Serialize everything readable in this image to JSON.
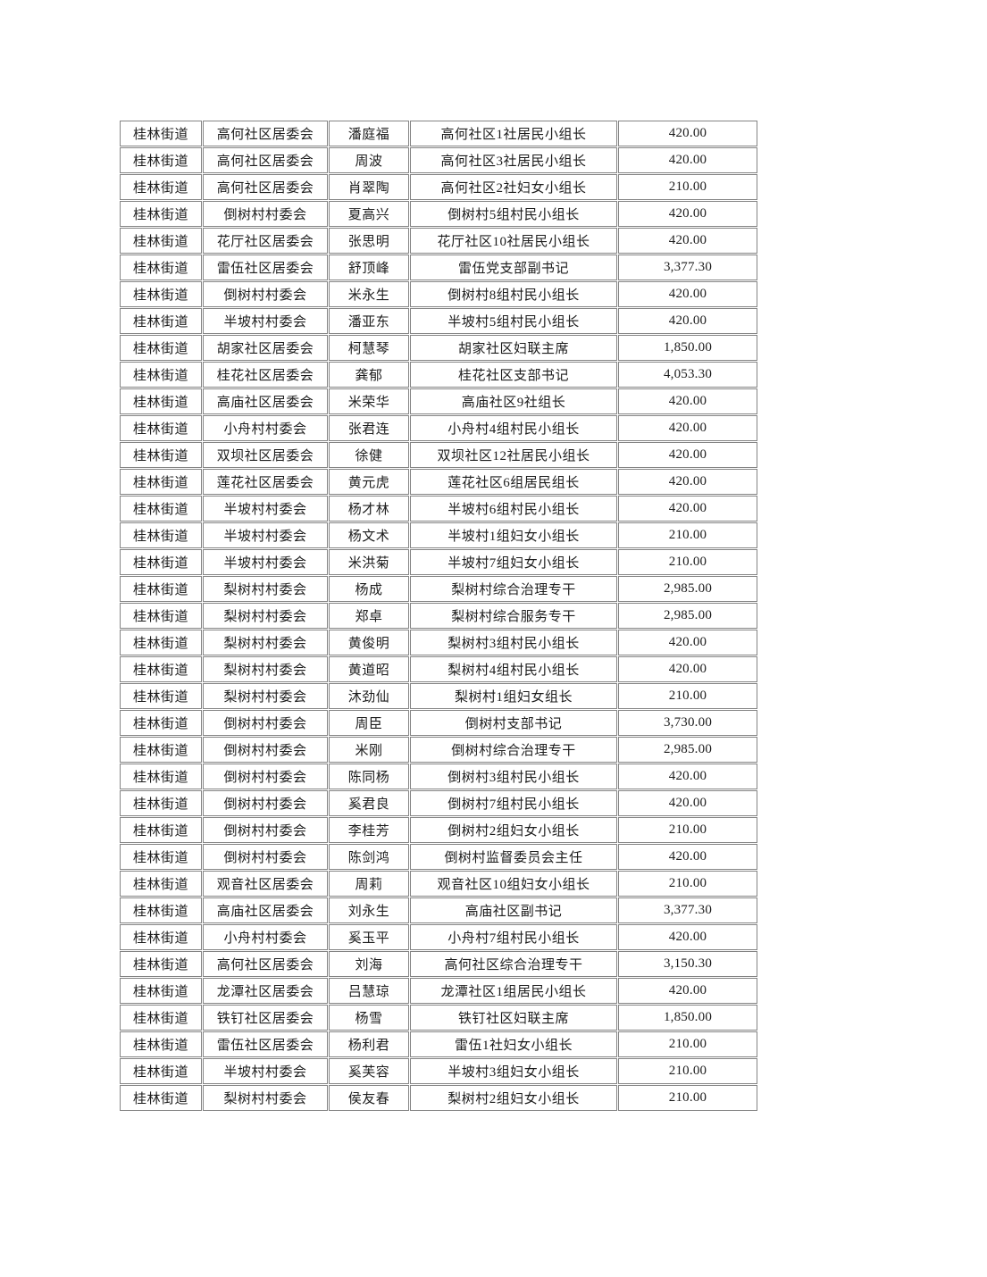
{
  "page": {
    "background_color": "#ffffff",
    "text_color": "#1c1c1c",
    "table_border_color": "#848484"
  },
  "table": {
    "column_keys": [
      "street",
      "organization",
      "person-name",
      "position",
      "amount"
    ],
    "rows": [
      [
        "桂林街道",
        "高何社区居委会",
        "潘庭福",
        "高何社区1社居民小组长",
        "420.00"
      ],
      [
        "桂林街道",
        "高何社区居委会",
        "周波",
        "高何社区3社居民小组长",
        "420.00"
      ],
      [
        "桂林街道",
        "高何社区居委会",
        "肖翠陶",
        "高何社区2社妇女小组长",
        "210.00"
      ],
      [
        "桂林街道",
        "倒树村村委会",
        "夏高兴",
        "倒树村5组村民小组长",
        "420.00"
      ],
      [
        "桂林街道",
        "花厅社区居委会",
        "张思明",
        "花厅社区10社居民小组长",
        "420.00"
      ],
      [
        "桂林街道",
        "雷伍社区居委会",
        "舒顶峰",
        "雷伍党支部副书记",
        "3,377.30"
      ],
      [
        "桂林街道",
        "倒树村村委会",
        "米永生",
        "倒树村8组村民小组长",
        "420.00"
      ],
      [
        "桂林街道",
        "半坡村村委会",
        "潘亚东",
        "半坡村5组村民小组长",
        "420.00"
      ],
      [
        "桂林街道",
        "胡家社区居委会",
        "柯慧琴",
        "胡家社区妇联主席",
        "1,850.00"
      ],
      [
        "桂林街道",
        "桂花社区居委会",
        "龚郁",
        "桂花社区支部书记",
        "4,053.30"
      ],
      [
        "桂林街道",
        "高庙社区居委会",
        "米荣华",
        "高庙社区9社组长",
        "420.00"
      ],
      [
        "桂林街道",
        "小舟村村委会",
        "张君连",
        "小舟村4组村民小组长",
        "420.00"
      ],
      [
        "桂林街道",
        "双坝社区居委会",
        "徐健",
        "双坝社区12社居民小组长",
        "420.00"
      ],
      [
        "桂林街道",
        "莲花社区居委会",
        "黄元虎",
        "莲花社区6组居民组长",
        "420.00"
      ],
      [
        "桂林街道",
        "半坡村村委会",
        "杨才林",
        "半坡村6组村民小组长",
        "420.00"
      ],
      [
        "桂林街道",
        "半坡村村委会",
        "杨文术",
        "半坡村1组妇女小组长",
        "210.00"
      ],
      [
        "桂林街道",
        "半坡村村委会",
        "米洪菊",
        "半坡村7组妇女小组长",
        "210.00"
      ],
      [
        "桂林街道",
        "梨树村村委会",
        "杨成",
        "梨树村综合治理专干",
        "2,985.00"
      ],
      [
        "桂林街道",
        "梨树村村委会",
        "郑卓",
        "梨树村综合服务专干",
        "2,985.00"
      ],
      [
        "桂林街道",
        "梨树村村委会",
        "黄俊明",
        "梨树村3组村民小组长",
        "420.00"
      ],
      [
        "桂林街道",
        "梨树村村委会",
        "黄道昭",
        "梨树村4组村民小组长",
        "420.00"
      ],
      [
        "桂林街道",
        "梨树村村委会",
        "沐劲仙",
        "梨树村1组妇女组长",
        "210.00"
      ],
      [
        "桂林街道",
        "倒树村村委会",
        "周臣",
        "倒树村支部书记",
        "3,730.00"
      ],
      [
        "桂林街道",
        "倒树村村委会",
        "米刚",
        "倒树村综合治理专干",
        "2,985.00"
      ],
      [
        "桂林街道",
        "倒树村村委会",
        "陈同杨",
        "倒树村3组村民小组长",
        "420.00"
      ],
      [
        "桂林街道",
        "倒树村村委会",
        "奚君良",
        "倒树村7组村民小组长",
        "420.00"
      ],
      [
        "桂林街道",
        "倒树村村委会",
        "李桂芳",
        "倒树村2组妇女小组长",
        "210.00"
      ],
      [
        "桂林街道",
        "倒树村村委会",
        "陈剑鸿",
        "倒树村监督委员会主任",
        "420.00"
      ],
      [
        "桂林街道",
        "观音社区居委会",
        "周莉",
        "观音社区10组妇女小组长",
        "210.00"
      ],
      [
        "桂林街道",
        "高庙社区居委会",
        "刘永生",
        "高庙社区副书记",
        "3,377.30"
      ],
      [
        "桂林街道",
        "小舟村村委会",
        "奚玉平",
        "小舟村7组村民小组长",
        "420.00"
      ],
      [
        "桂林街道",
        "高何社区居委会",
        "刘海",
        "高何社区综合治理专干",
        "3,150.30"
      ],
      [
        "桂林街道",
        "龙潭社区居委会",
        "吕慧琼",
        "龙潭社区1组居民小组长",
        "420.00"
      ],
      [
        "桂林街道",
        "铁钉社区居委会",
        "杨雪",
        "铁钉社区妇联主席",
        "1,850.00"
      ],
      [
        "桂林街道",
        "雷伍社区居委会",
        "杨利君",
        "雷伍1社妇女小组长",
        "210.00"
      ],
      [
        "桂林街道",
        "半坡村村委会",
        "奚芙容",
        "半坡村3组妇女小组长",
        "210.00"
      ],
      [
        "桂林街道",
        "梨树村村委会",
        "侯友春",
        "梨树村2组妇女小组长",
        "210.00"
      ]
    ]
  }
}
